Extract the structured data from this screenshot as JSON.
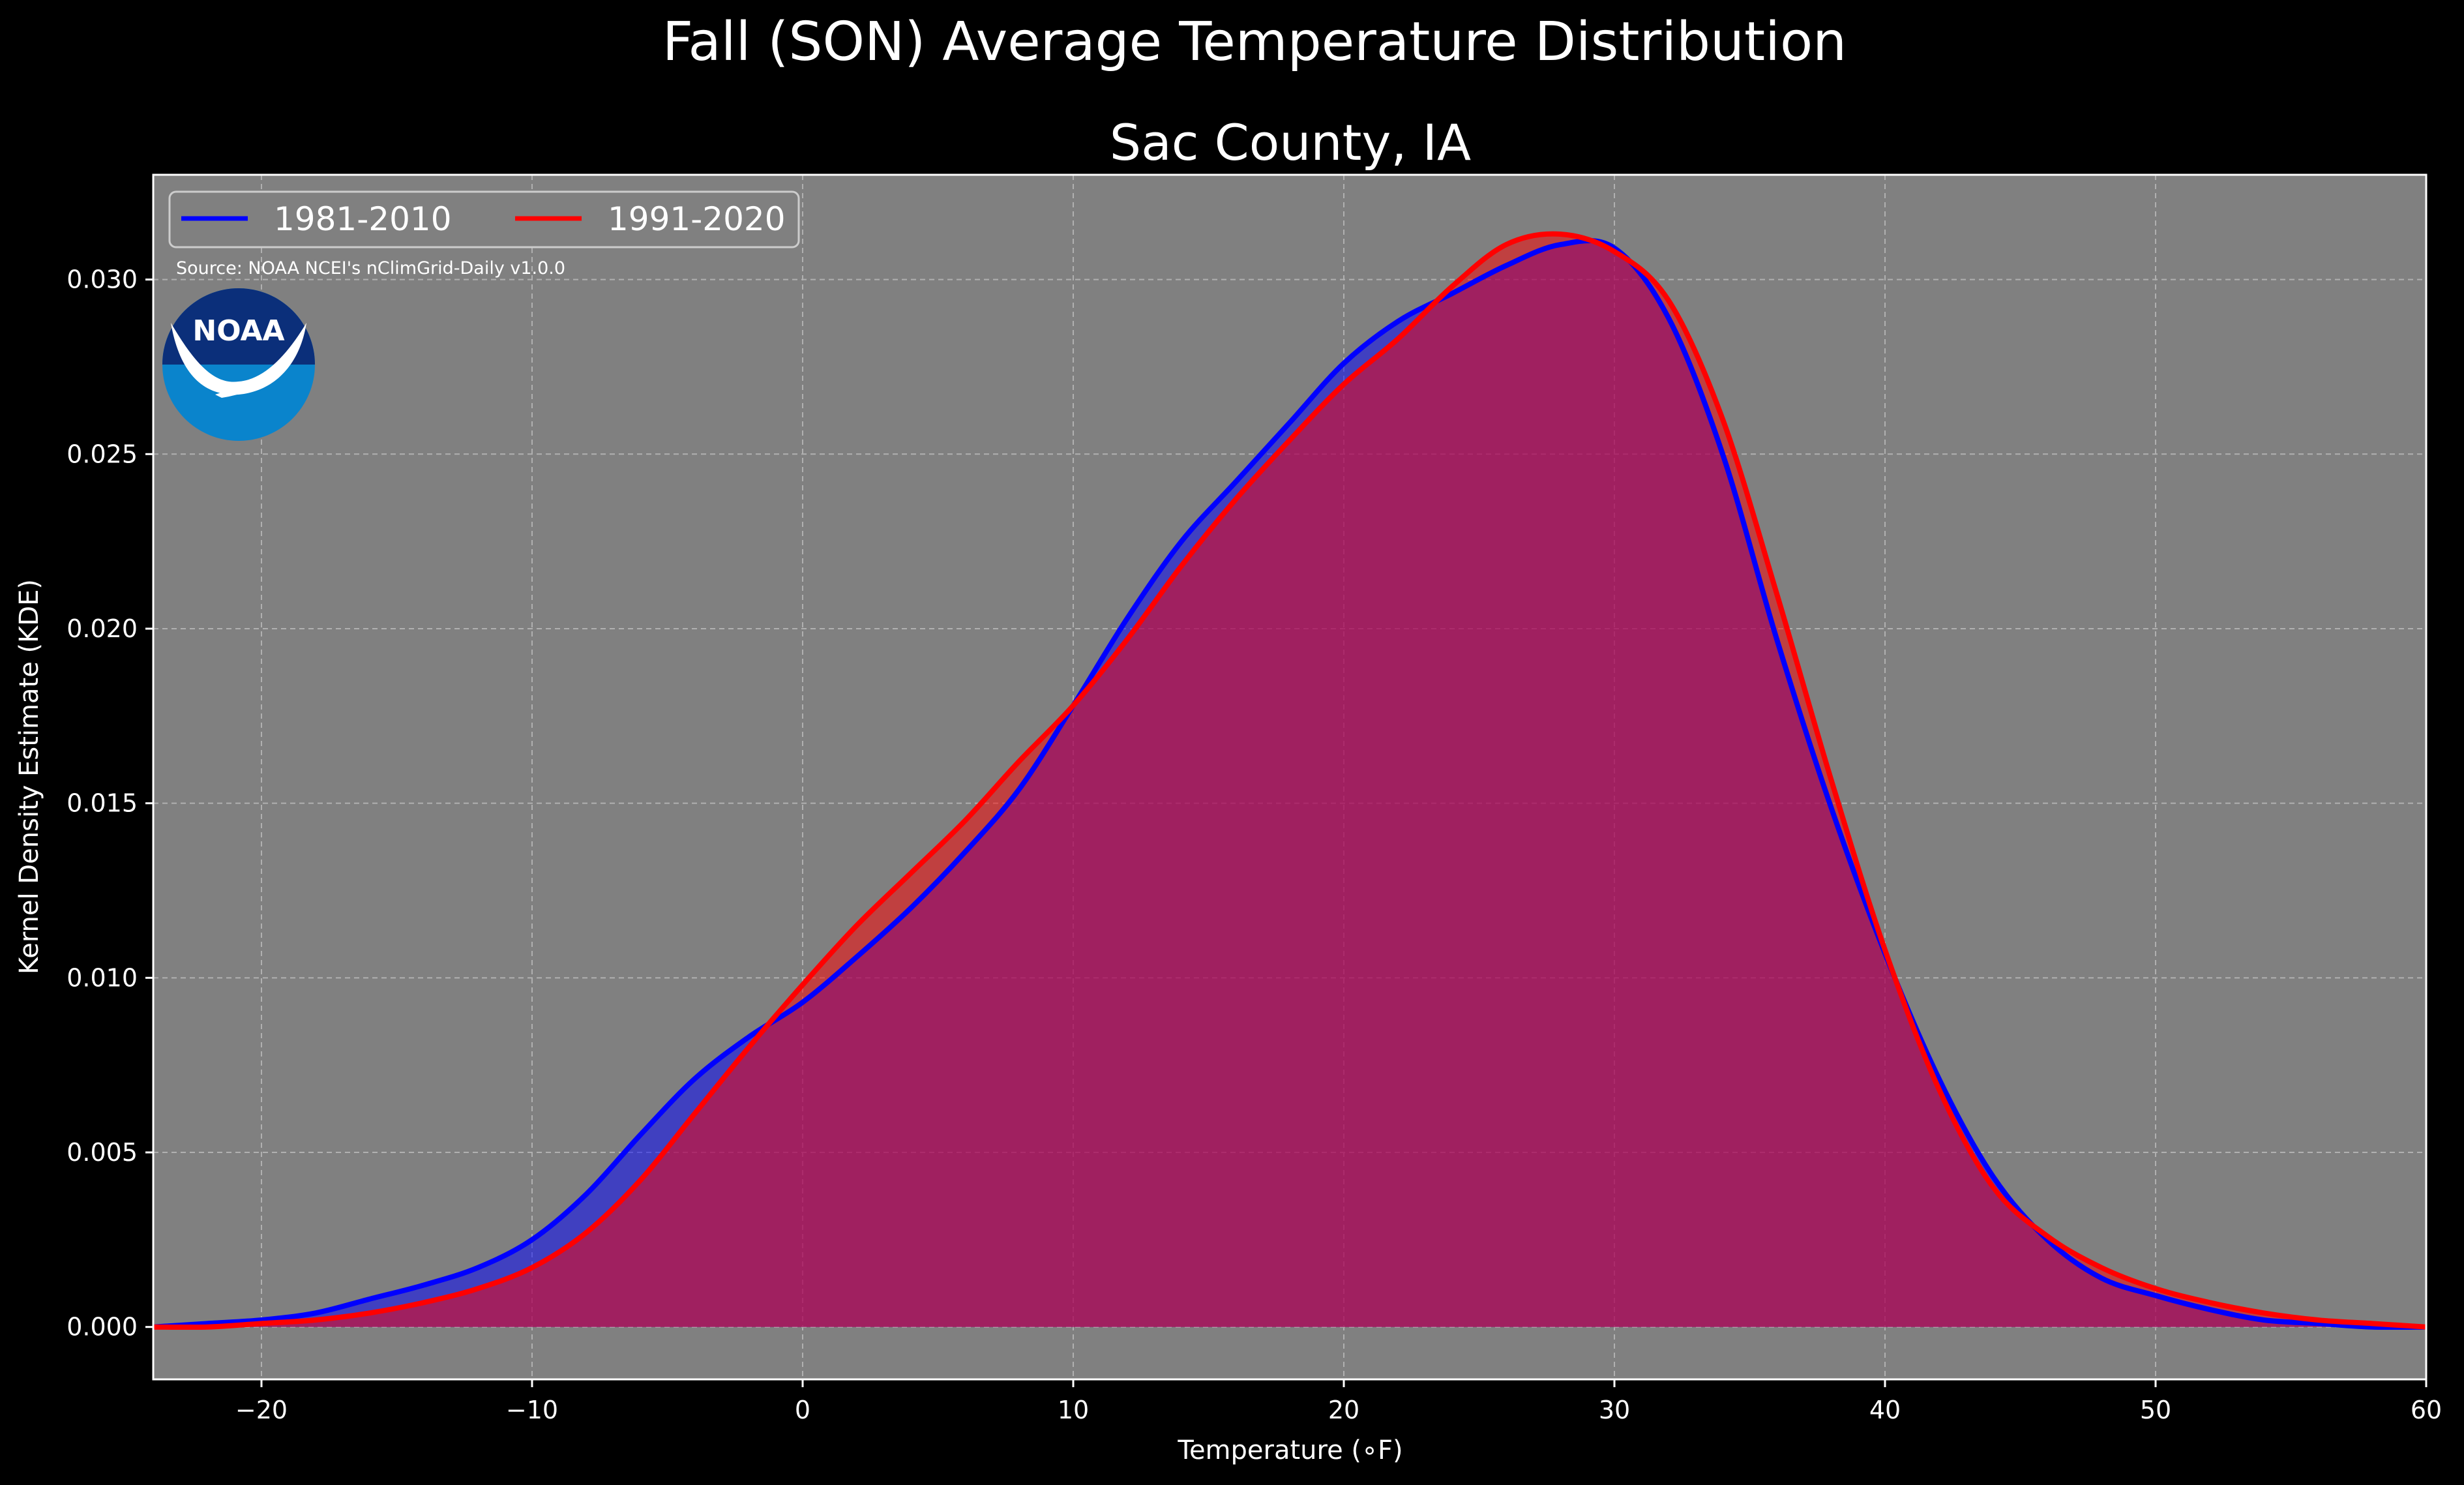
{
  "chart_data": {
    "type": "area",
    "title": "Fall (SON) Average Temperature Distribution",
    "subtitle": "Sac County, IA",
    "xlabel": "Temperature (∘F)",
    "ylabel": "Kernel Density Estimate (KDE)",
    "xlim": [
      -24,
      60
    ],
    "ylim": [
      -0.0015,
      0.033
    ],
    "xticks": [
      "−20",
      "−10",
      "0",
      "10",
      "20",
      "30",
      "40",
      "50",
      "60"
    ],
    "xtick_values": [
      -20,
      -10,
      0,
      10,
      20,
      30,
      40,
      50,
      60
    ],
    "yticks": [
      "0.000",
      "0.005",
      "0.010",
      "0.015",
      "0.020",
      "0.025",
      "0.030"
    ],
    "ytick_values": [
      0,
      0.005,
      0.01,
      0.015,
      0.02,
      0.025,
      0.03
    ],
    "grid": true,
    "legend_placement": "top-left",
    "annotation": "Source: NOAA NCEI's nClimGrid-Daily v1.0.0",
    "logo_text": "NOAA",
    "series": [
      {
        "name": "1981-2010",
        "color": "#0000ff",
        "x": [
          -24,
          -22,
          -20,
          -18,
          -16,
          -14,
          -12,
          -10,
          -8,
          -6,
          -4,
          -2,
          0,
          2,
          4,
          6,
          8,
          10,
          12,
          14,
          16,
          18,
          20,
          22,
          24,
          26,
          28,
          30,
          32,
          34,
          36,
          38,
          40,
          42,
          44,
          46,
          48,
          50,
          52,
          54,
          56,
          58,
          60
        ],
        "values": [
          0.0,
          0.0001,
          0.0002,
          0.0004,
          0.0008,
          0.0012,
          0.0017,
          0.0025,
          0.0038,
          0.0055,
          0.0071,
          0.0083,
          0.0093,
          0.0106,
          0.012,
          0.0136,
          0.0154,
          0.0178,
          0.0203,
          0.0225,
          0.0242,
          0.0259,
          0.0276,
          0.0288,
          0.0296,
          0.0304,
          0.031,
          0.0309,
          0.0289,
          0.025,
          0.0197,
          0.0149,
          0.0107,
          0.0071,
          0.0043,
          0.0025,
          0.0014,
          0.0009,
          0.0005,
          0.0002,
          0.0001,
          0.0,
          0.0
        ]
      },
      {
        "name": "1991-2020",
        "color": "#ff0000",
        "x": [
          -24,
          -22,
          -20,
          -18,
          -16,
          -14,
          -12,
          -10,
          -8,
          -6,
          -4,
          -2,
          0,
          2,
          4,
          6,
          8,
          10,
          12,
          14,
          16,
          18,
          20,
          22,
          24,
          26,
          28,
          30,
          32,
          34,
          36,
          38,
          40,
          42,
          44,
          46,
          48,
          50,
          52,
          54,
          56,
          58,
          60
        ],
        "values": [
          0.0,
          0.0,
          0.0001,
          0.0002,
          0.0004,
          0.0007,
          0.0011,
          0.0017,
          0.0027,
          0.0042,
          0.0061,
          0.008,
          0.0098,
          0.0115,
          0.013,
          0.0145,
          0.0162,
          0.0178,
          0.0197,
          0.0218,
          0.0237,
          0.0254,
          0.027,
          0.0283,
          0.0298,
          0.031,
          0.0313,
          0.0308,
          0.0294,
          0.026,
          0.021,
          0.0157,
          0.0108,
          0.0068,
          0.004,
          0.0026,
          0.0017,
          0.0011,
          0.0007,
          0.0004,
          0.0002,
          0.0001,
          0.0
        ]
      }
    ]
  }
}
